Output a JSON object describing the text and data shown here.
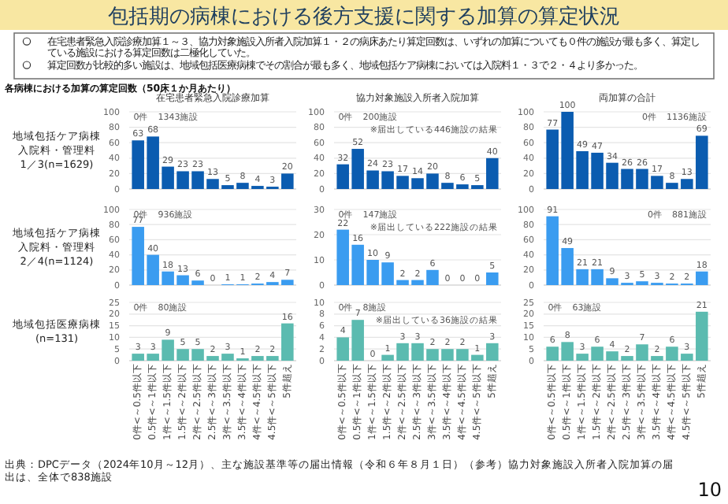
{
  "chart_data": [
    {
      "type": "other",
      "title": "包括期の病棟における後方支援に関する加算の算定状況",
      "annotations": [
        "在宅患者緊急入院診療加算１～３、協力対象施設入所者入院加算１・２の病床あたり算定回数は、いずれの加算についても０件の施設が最も多く、算定している施設における算定回数は二極化していた。",
        "算定回数が比較的多い施設は、地域包括医療病棟でその割合が最も多く、地域包括ケア病棟においては入院料１・３で２・４より多かった。",
        "各病棟における加算の算定回数（50床１か月あたり）",
        "出典：DPCデータ（2024年10月～12月）、主な施設基準等の届出情報（令和６年８月１日）（参考）協力対象施設入所者入院加算の届出は、全体で838施設",
        "10"
      ]
    },
    {
      "type": "bar",
      "title": "在宅患者緊急入院診療加算",
      "ylabel": "地域包括ケア病棟入院料・管理料1／3(n=1629)",
      "categories": [
        null,
        null,
        null,
        null,
        null,
        null,
        null,
        null,
        null,
        null,
        null
      ],
      "values": [
        63,
        68,
        29,
        23,
        23,
        13,
        5,
        8,
        4,
        3,
        20
      ],
      "color": "#0b5cb0",
      "ylim": [
        0,
        100
      ],
      "yticks": [
        0,
        20,
        40,
        60,
        80,
        100
      ],
      "grid": "y",
      "data_labels": true,
      "tick_labels": "y",
      "annotations": [
        "0件　1343施設"
      ]
    },
    {
      "type": "bar",
      "title": "協力対象施設入所者入院加算",
      "categories": [
        null,
        null,
        null,
        null,
        null,
        null,
        null,
        null,
        null,
        null,
        null
      ],
      "values": [
        32,
        52,
        24,
        23,
        17,
        14,
        20,
        8,
        6,
        5,
        40
      ],
      "color": "#0b5cb0",
      "ylim": [
        0,
        100
      ],
      "yticks": [
        0,
        20,
        40,
        60,
        80,
        100
      ],
      "grid": "y",
      "data_labels": true,
      "tick_labels": "y",
      "annotations": [
        "0件　200施設",
        "※届出している446施設の結果"
      ]
    },
    {
      "type": "bar",
      "title": "両加算の合計",
      "categories": [
        null,
        null,
        null,
        null,
        null,
        null,
        null,
        null,
        null,
        null,
        null
      ],
      "values": [
        77,
        100,
        49,
        47,
        34,
        26,
        26,
        17,
        8,
        13,
        69
      ],
      "color": "#0b5cb0",
      "ylim": [
        0,
        100
      ],
      "yticks": [
        0,
        20,
        40,
        60,
        80,
        100
      ],
      "grid": "y",
      "data_labels": true,
      "tick_labels": "y",
      "annotations": [
        "0件　1136施設"
      ]
    },
    {
      "type": "bar",
      "ylabel": "地域包括ケア病棟入院料・管理料2／4(n=1124)",
      "categories": [
        null,
        null,
        null,
        null,
        null,
        null,
        null,
        null,
        null,
        null,
        null
      ],
      "values": [
        77,
        40,
        18,
        13,
        6,
        0,
        1,
        1,
        2,
        4,
        7
      ],
      "color": "#3a9cf0",
      "ylim": [
        0,
        100
      ],
      "yticks": [
        0,
        20,
        40,
        60,
        80,
        100
      ],
      "grid": "y",
      "data_labels": true,
      "tick_labels": "y",
      "annotations": [
        "0件　936施設"
      ]
    },
    {
      "type": "bar",
      "categories": [
        null,
        null,
        null,
        null,
        null,
        null,
        null,
        null,
        null,
        null,
        null
      ],
      "values": [
        22,
        16,
        10,
        9,
        2,
        2,
        6,
        0,
        0,
        0,
        5
      ],
      "color": "#3a9cf0",
      "ylim": [
        0,
        30
      ],
      "yticks": [
        0,
        10,
        20,
        30
      ],
      "grid": "y",
      "data_labels": true,
      "tick_labels": "y",
      "annotations": [
        "0件　147施設",
        "※届出している222施設の結果"
      ]
    },
    {
      "type": "bar",
      "categories": [
        null,
        null,
        null,
        null,
        null,
        null,
        null,
        null,
        null,
        null,
        null
      ],
      "values": [
        91,
        49,
        21,
        21,
        9,
        3,
        5,
        3,
        2,
        2,
        18
      ],
      "color": "#3a9cf0",
      "ylim": [
        0,
        100
      ],
      "yticks": [
        0,
        20,
        40,
        60,
        80,
        100
      ],
      "grid": "y",
      "data_labels": true,
      "tick_labels": "y",
      "annotations": [
        "0件　881施設"
      ]
    },
    {
      "type": "bar",
      "ylabel": "地域包括医療病棟(n=131)",
      "categories": [
        "0件<～0.5件以下",
        "0.5件<～1件以下",
        "1件<～1.5件以下",
        "1.5件<～2件以下",
        "2件<～2.5件以下",
        "2.5件<～3件以下",
        "3件<～3.5件以下",
        "3.5件<～4件以下",
        "4件<～4.5件以下",
        "4.5件<～5件以下",
        "5件超え"
      ],
      "values": [
        3,
        3,
        9,
        5,
        5,
        2,
        3,
        1,
        2,
        2,
        16
      ],
      "color": "#5bbbb0",
      "ylim": [
        0,
        25
      ],
      "yticks": [
        0,
        5,
        10,
        15,
        20,
        25
      ],
      "grid": "y",
      "data_labels": true,
      "annotations": [
        "0件　80施設"
      ]
    },
    {
      "type": "bar",
      "categories": [
        "0件<～0.5件以下",
        "0.5件<～1件以下",
        "1件<～1.5件以下",
        "1.5件<～2件以下",
        "2件<～2.5件以下",
        "2.5件<～3件以下",
        "3件<～3.5件以下",
        "3.5件<～4件以下",
        "4件<～4.5件以下",
        "4.5件<～5件以下",
        "5件超え"
      ],
      "values": [
        4,
        7,
        0,
        1,
        3,
        3,
        2,
        2,
        2,
        1,
        3
      ],
      "color": "#5bbbb0",
      "ylim": [
        0,
        10
      ],
      "yticks": [
        0,
        2,
        4,
        6,
        8,
        10
      ],
      "grid": "y",
      "data_labels": true,
      "annotations": [
        "0件　8施設",
        "※届出している36施設の結果"
      ]
    },
    {
      "type": "bar",
      "categories": [
        "0件<～0.5件以下",
        "0.5件<～1件以下",
        "1件<～1.5件以下",
        "1.5件<～2件以下",
        "2件<～2.5件以下",
        "2.5件<～3件以下",
        "3件<～3.5件以下",
        "3.5件<～4件以下",
        "4件<～4.5件以下",
        "4.5件<～5件以下",
        "5件超え"
      ],
      "values": [
        6,
        8,
        3,
        6,
        4,
        2,
        7,
        2,
        6,
        3,
        21
      ],
      "color": "#5bbbb0",
      "ylim": [
        0,
        25
      ],
      "yticks": [
        0,
        5,
        10,
        15,
        20,
        25
      ],
      "grid": "y",
      "data_labels": true,
      "annotations": [
        "0件　63施設"
      ]
    }
  ]
}
